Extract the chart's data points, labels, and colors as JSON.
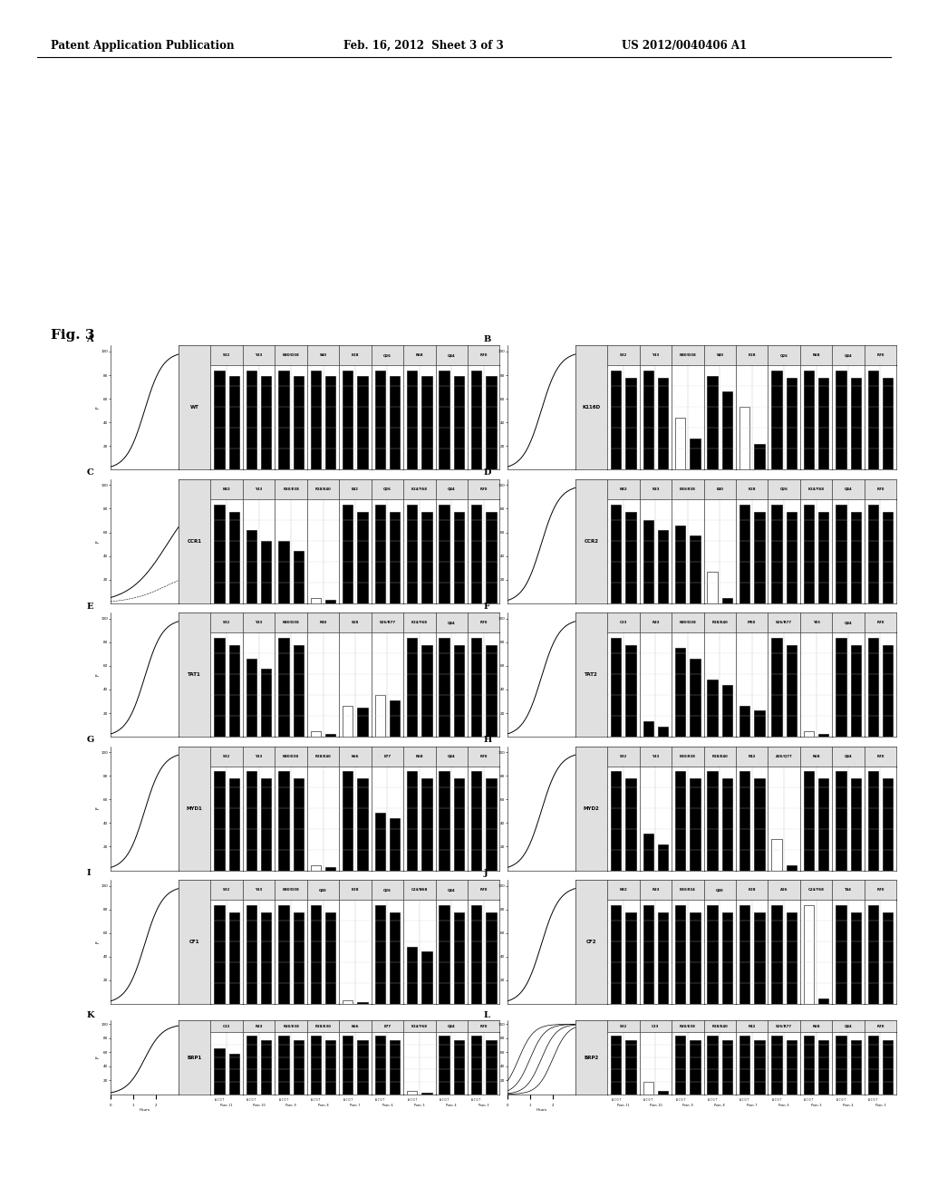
{
  "header_left": "Patent Application Publication",
  "header_mid": "Feb. 16, 2012  Sheet 3 of 3",
  "header_right": "US 2012/0040406 A1",
  "fig_label": "Fig. 3",
  "panels": [
    {
      "label": "A",
      "title": "WT",
      "columns": [
        "S32",
        "Y33",
        "N30/D38",
        "S40",
        "K28",
        "Q26",
        "R68",
        "Q44",
        "R70"
      ],
      "curve_type": "steep",
      "bar1": [
        95,
        95,
        95,
        95,
        95,
        95,
        95,
        95,
        95
      ],
      "bar2": [
        90,
        90,
        90,
        90,
        90,
        90,
        90,
        90,
        90
      ]
    },
    {
      "label": "B",
      "title": "K116D",
      "columns": [
        "S32",
        "Y33",
        "N30/D38",
        "S40",
        "K28",
        "Q26",
        "R68",
        "Q44",
        "R70"
      ],
      "curve_type": "steep",
      "bar1": [
        95,
        95,
        50,
        90,
        60,
        95,
        95,
        95,
        95
      ],
      "bar2": [
        88,
        88,
        30,
        75,
        25,
        88,
        88,
        88,
        88
      ],
      "white_bar1": [
        false,
        false,
        true,
        false,
        true,
        false,
        false,
        false,
        false
      ],
      "white_bar2": [
        false,
        false,
        false,
        false,
        false,
        false,
        false,
        false,
        false
      ]
    },
    {
      "label": "C",
      "title": "CCR1",
      "columns": [
        "N32",
        "Y33",
        "R30/E38",
        "R28/E40",
        "E42",
        "Q26",
        "K24/Y68",
        "Q44",
        "R70"
      ],
      "curve_type": "shallow",
      "bar1": [
        95,
        70,
        60,
        5,
        95,
        95,
        95,
        95,
        95
      ],
      "bar2": [
        88,
        60,
        50,
        3,
        88,
        88,
        88,
        88,
        88
      ],
      "white_bar1": [
        false,
        false,
        false,
        true,
        false,
        false,
        false,
        false,
        false
      ],
      "white_bar2": [
        false,
        false,
        false,
        false,
        false,
        false,
        false,
        false,
        false
      ]
    },
    {
      "label": "D",
      "title": "CCR2",
      "columns": [
        "N32",
        "R33",
        "E30/R38",
        "E40",
        "K28",
        "Q26",
        "K24/Y68",
        "Q44",
        "R70"
      ],
      "curve_type": "steep",
      "bar1": [
        95,
        80,
        75,
        30,
        95,
        95,
        95,
        95,
        95
      ],
      "bar2": [
        88,
        70,
        65,
        5,
        88,
        88,
        88,
        88,
        88
      ],
      "white_bar1": [
        false,
        false,
        false,
        true,
        false,
        false,
        false,
        false,
        false
      ],
      "white_bar2": [
        false,
        false,
        false,
        false,
        false,
        false,
        false,
        false,
        false
      ]
    },
    {
      "label": "E",
      "title": "TAT1",
      "columns": [
        "S32",
        "Y33",
        "N30/D38",
        "R40",
        "S28",
        "S26/R77",
        "K24/Y68",
        "Q44",
        "R70"
      ],
      "curve_type": "steep",
      "bar1": [
        95,
        75,
        95,
        5,
        30,
        40,
        95,
        95,
        95
      ],
      "bar2": [
        88,
        65,
        88,
        3,
        28,
        35,
        88,
        88,
        88
      ],
      "white_bar1": [
        false,
        false,
        false,
        true,
        true,
        true,
        false,
        false,
        false
      ],
      "white_bar2": [
        false,
        false,
        false,
        false,
        false,
        false,
        false,
        false,
        false
      ]
    },
    {
      "label": "F",
      "title": "TAT2",
      "columns": [
        "C33",
        "R33",
        "N30/D38",
        "R28/E40",
        "M60",
        "S26/R77",
        "Y55",
        "Q44",
        "R70"
      ],
      "curve_type": "steep",
      "bar1": [
        95,
        15,
        85,
        55,
        30,
        95,
        5,
        95,
        95
      ],
      "bar2": [
        88,
        10,
        75,
        50,
        25,
        88,
        3,
        88,
        88
      ],
      "white_bar1": [
        false,
        false,
        false,
        false,
        false,
        false,
        true,
        false,
        false
      ],
      "white_bar2": [
        false,
        false,
        false,
        false,
        false,
        false,
        false,
        false,
        false
      ]
    },
    {
      "label": "G",
      "title": "MYD1",
      "columns": [
        "S32",
        "Y33",
        "N30/E38",
        "R28/E40",
        "K66",
        "E77",
        "R68",
        "Q44",
        "R70"
      ],
      "curve_type": "steep",
      "bar1": [
        95,
        95,
        95,
        5,
        95,
        55,
        95,
        95,
        95
      ],
      "bar2": [
        88,
        88,
        88,
        3,
        88,
        50,
        88,
        88,
        88
      ],
      "white_bar1": [
        false,
        false,
        false,
        true,
        false,
        false,
        false,
        false,
        false
      ],
      "white_bar2": [
        false,
        false,
        false,
        false,
        false,
        false,
        false,
        false,
        false
      ]
    },
    {
      "label": "H",
      "title": "MYD2",
      "columns": [
        "S32",
        "Y33",
        "E30/R38",
        "R28/E40",
        "R42",
        "A26/Q77",
        "R68",
        "Q44",
        "R70"
      ],
      "curve_type": "steep",
      "bar1": [
        95,
        35,
        95,
        95,
        95,
        30,
        95,
        95,
        95
      ],
      "bar2": [
        88,
        25,
        88,
        88,
        88,
        5,
        88,
        88,
        88
      ],
      "white_bar1": [
        false,
        false,
        false,
        false,
        false,
        true,
        false,
        false,
        false
      ],
      "white_bar2": [
        false,
        false,
        false,
        false,
        false,
        false,
        false,
        false,
        false
      ]
    },
    {
      "label": "I",
      "title": "CF1",
      "columns": [
        "S32",
        "Y33",
        "N30/D38",
        "Q40",
        "K28",
        "Q26",
        "C24/N68",
        "Q44",
        "R70"
      ],
      "curve_type": "steep",
      "bar1": [
        95,
        95,
        95,
        95,
        3,
        95,
        55,
        95,
        95
      ],
      "bar2": [
        88,
        88,
        88,
        88,
        2,
        88,
        50,
        88,
        88
      ],
      "white_bar1": [
        false,
        false,
        false,
        false,
        true,
        false,
        false,
        false,
        false
      ],
      "white_bar2": [
        false,
        false,
        false,
        false,
        false,
        false,
        false,
        false,
        false
      ]
    },
    {
      "label": "J",
      "title": "CF2",
      "columns": [
        "N32",
        "R33",
        "E30/R34",
        "Q40",
        "K28",
        "A26",
        "C24/Y68",
        "T44",
        "R70"
      ],
      "curve_type": "steep",
      "bar1": [
        95,
        95,
        95,
        95,
        95,
        95,
        95,
        95,
        95
      ],
      "bar2": [
        88,
        88,
        88,
        88,
        88,
        88,
        5,
        88,
        88
      ],
      "white_bar1": [
        false,
        false,
        false,
        false,
        false,
        false,
        true,
        false,
        false
      ],
      "white_bar2": [
        false,
        false,
        false,
        false,
        false,
        false,
        false,
        false,
        false
      ]
    },
    {
      "label": "K",
      "title": "BRP1",
      "columns": [
        "C32",
        "R33",
        "R30/E38",
        "R28/E30",
        "K66",
        "E77",
        "K24/Y68",
        "Q44",
        "R70"
      ],
      "curve_type": "steep",
      "has_bottom_axis": true,
      "bar1": [
        75,
        95,
        95,
        95,
        95,
        95,
        5,
        95,
        95
      ],
      "bar2": [
        65,
        88,
        88,
        88,
        88,
        88,
        3,
        88,
        88
      ],
      "white_bar1": [
        false,
        false,
        false,
        false,
        false,
        false,
        true,
        false,
        false
      ],
      "white_bar2": [
        false,
        false,
        false,
        false,
        false,
        false,
        false,
        false,
        false
      ],
      "bottom_labels": [
        "Hours",
        "Posn. 11",
        "Posn. 10",
        "Posn. 9",
        "Posn. 8",
        "Posn. 7",
        "Posn. 6",
        "Posn. 5",
        "Posn. 4",
        "Posn. 3"
      ]
    },
    {
      "label": "L",
      "title": "BRP2",
      "columns": [
        "S32",
        "C33",
        "R30/E38",
        "R28/E40",
        "R42",
        "S26/R77",
        "R68",
        "Q44",
        "R70"
      ],
      "curve_type": "multi",
      "has_bottom_axis": true,
      "bar1": [
        95,
        20,
        95,
        95,
        95,
        95,
        95,
        95,
        95
      ],
      "bar2": [
        88,
        5,
        88,
        88,
        88,
        88,
        88,
        88,
        88
      ],
      "white_bar1": [
        false,
        true,
        false,
        false,
        false,
        false,
        false,
        false,
        false
      ],
      "white_bar2": [
        false,
        false,
        false,
        false,
        false,
        false,
        false,
        false,
        false
      ],
      "bottom_labels": [
        "Hours",
        "Posn. 11",
        "Posn. 10",
        "Posn. 9",
        "Posn. 8",
        "Posn. 7",
        "Posn. 6",
        "Posn. 5",
        "Posn. 4",
        "Posn. 3"
      ]
    }
  ]
}
